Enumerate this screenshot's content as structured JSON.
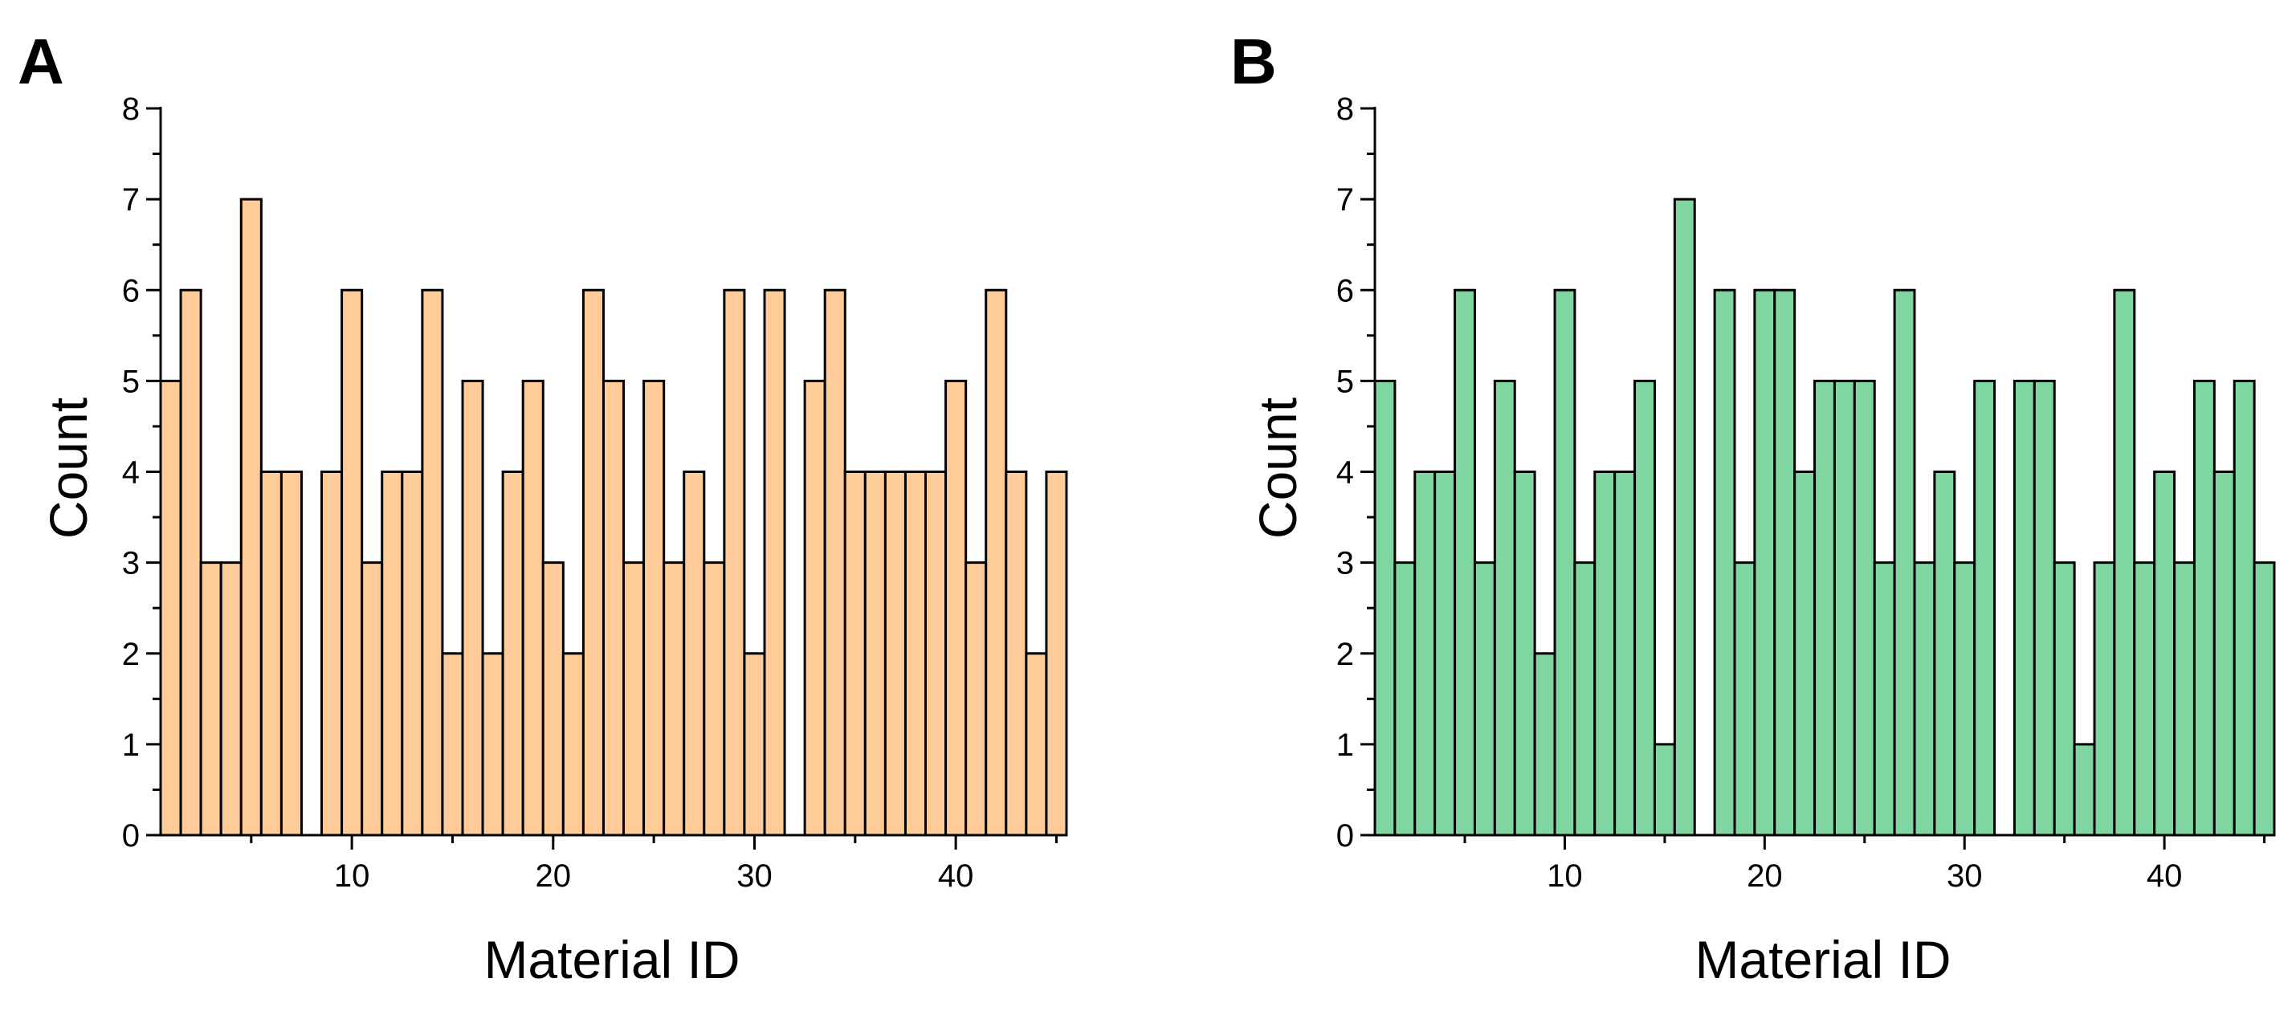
{
  "chart_data": [
    {
      "panel_label": "A",
      "type": "bar",
      "xlabel": "Material ID",
      "ylabel": "Count",
      "xlim": [
        0.5,
        45.5
      ],
      "ylim": [
        0,
        8
      ],
      "x_ticks": [
        10,
        20,
        30,
        40
      ],
      "y_ticks": [
        0,
        1,
        2,
        3,
        4,
        5,
        6,
        7,
        8
      ],
      "bar_color": "#FFCC99",
      "edge_color": "#000000",
      "categories": [
        1,
        2,
        3,
        4,
        5,
        6,
        7,
        8,
        9,
        10,
        11,
        12,
        13,
        14,
        15,
        16,
        17,
        18,
        19,
        20,
        21,
        22,
        23,
        24,
        25,
        26,
        27,
        28,
        29,
        30,
        31,
        32,
        33,
        34,
        35,
        36,
        37,
        38,
        39,
        40,
        41,
        42,
        43,
        44,
        45
      ],
      "values": [
        5,
        6,
        3,
        3,
        7,
        4,
        4,
        0,
        4,
        6,
        3,
        4,
        4,
        6,
        2,
        5,
        2,
        4,
        5,
        3,
        2,
        6,
        5,
        3,
        5,
        3,
        4,
        3,
        6,
        2,
        6,
        0,
        5,
        6,
        4,
        4,
        4,
        4,
        4,
        5,
        3,
        6,
        4,
        2,
        4
      ]
    },
    {
      "panel_label": "B",
      "type": "bar",
      "xlabel": "Material ID",
      "ylabel": "Count",
      "xlim": [
        0.5,
        45.5
      ],
      "ylim": [
        0,
        8
      ],
      "x_ticks": [
        10,
        20,
        30,
        40
      ],
      "y_ticks": [
        0,
        1,
        2,
        3,
        4,
        5,
        6,
        7,
        8
      ],
      "bar_color": "#7FD6A0",
      "edge_color": "#000000",
      "categories": [
        1,
        2,
        3,
        4,
        5,
        6,
        7,
        8,
        9,
        10,
        11,
        12,
        13,
        14,
        15,
        16,
        17,
        18,
        19,
        20,
        21,
        22,
        23,
        24,
        25,
        26,
        27,
        28,
        29,
        30,
        31,
        32,
        33,
        34,
        35,
        36,
        37,
        38,
        39,
        40,
        41,
        42,
        43,
        44,
        45
      ],
      "values": [
        5,
        3,
        4,
        4,
        6,
        3,
        5,
        4,
        2,
        6,
        3,
        4,
        4,
        5,
        1,
        7,
        0,
        6,
        3,
        6,
        6,
        4,
        5,
        5,
        5,
        3,
        6,
        3,
        4,
        3,
        5,
        0,
        5,
        5,
        3,
        1,
        3,
        6,
        3,
        4,
        3,
        5,
        4,
        5,
        3
      ]
    }
  ]
}
